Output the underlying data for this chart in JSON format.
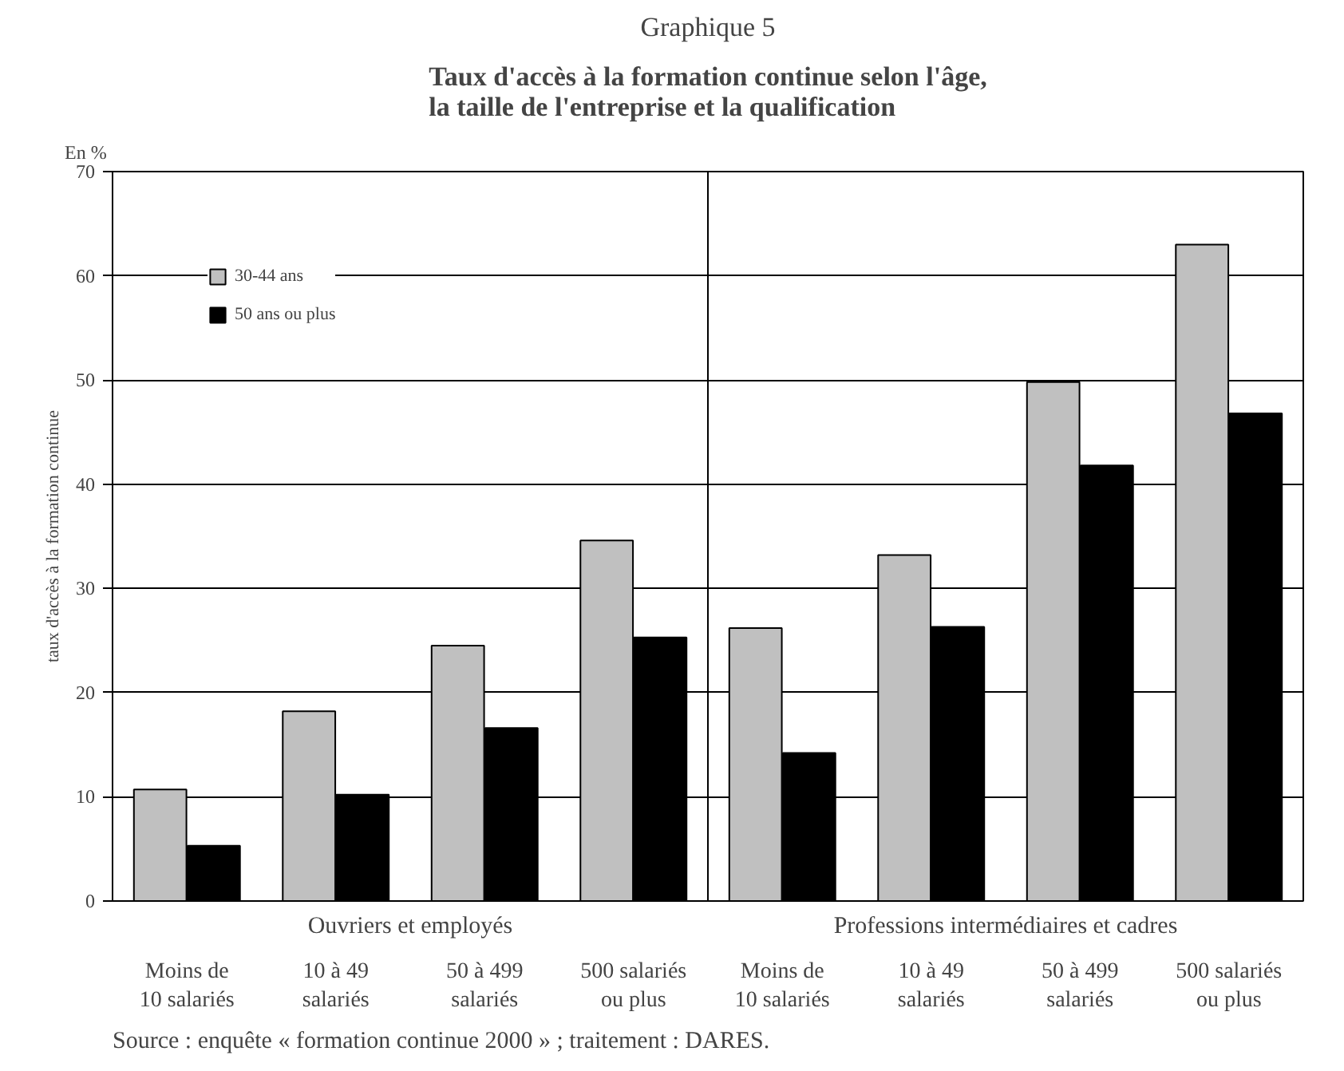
{
  "chart_data": {
    "type": "bar",
    "title": "Graphique 5",
    "subtitle": "Taux d'accès à la formation continue selon l'âge,\nla taille de l'entreprise et la qualification",
    "ylabel": "taux d'accès à la formation continue",
    "categories": [
      "Moins de\n10 salariés",
      "10 à 49\nsalariés",
      "50 à 499\nsalariés",
      "500 salariés\nou plus",
      "Moins de\n10 salariés",
      "10 à 49\nsalariés",
      "50 à 499\nsalariés",
      "500 salariés\nou plus"
    ],
    "series": [
      {
        "name": "30-44 ans",
        "color": "#c0c0c0",
        "values": [
          10.7,
          18.2,
          24.5,
          34.6,
          26.2,
          33.2,
          49.8,
          63.0
        ]
      },
      {
        "name": "50 ans ou plus",
        "color": "#000000",
        "values": [
          5.3,
          10.2,
          16.6,
          25.3,
          14.2,
          26.3,
          41.8,
          46.8
        ]
      }
    ],
    "ylim": [
      0,
      70
    ],
    "yticks": [
      0,
      10,
      20,
      30,
      40,
      50,
      60,
      70
    ],
    "grid": "y",
    "legend": "top left",
    "annotations": [
      "En %",
      "Ouvriers et employés",
      "Professions intermédiaires et cadres",
      "Source  : enquête « formation continue 2000 » ; traitement : DARES."
    ]
  }
}
